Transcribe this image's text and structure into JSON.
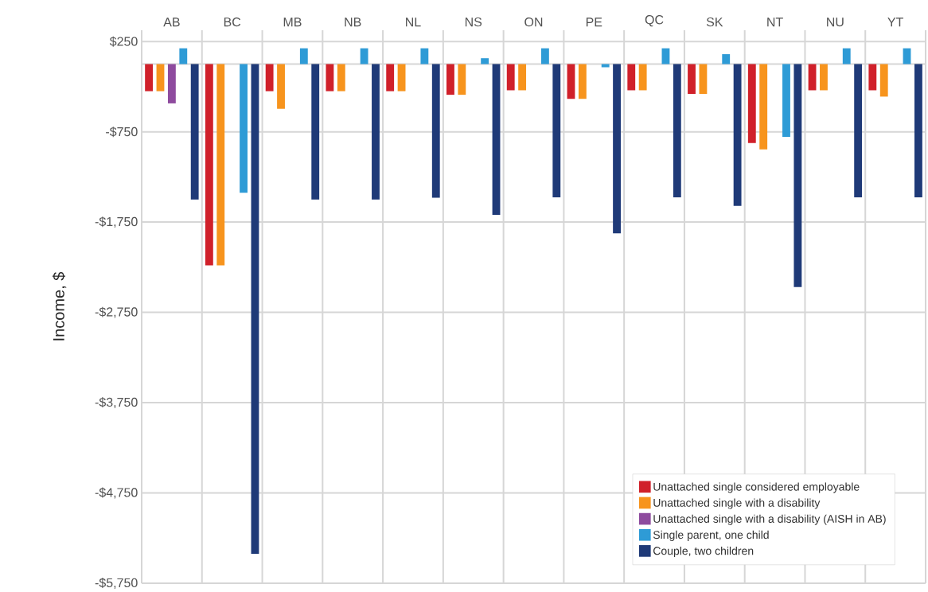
{
  "chart_data": {
    "type": "bar",
    "ylabel": "Income, $",
    "categories": [
      "AB",
      "BC",
      "MB",
      "NB",
      "NL",
      "NS",
      "ON",
      "PE",
      "QC",
      "SK",
      "NT",
      "NU",
      "YT"
    ],
    "series": [
      {
        "name": "Unattached single considered employable",
        "color": "#d0202a",
        "values": [
          -300,
          -2230,
          -300,
          -300,
          -300,
          -340,
          -290,
          -385,
          -290,
          -330,
          -875,
          -290,
          -290
        ]
      },
      {
        "name": "Unattached single with a disability",
        "color": "#f7941d",
        "values": [
          -300,
          -2230,
          -495,
          -300,
          -300,
          -340,
          -290,
          -385,
          -290,
          -330,
          -945,
          -290,
          -360
        ]
      },
      {
        "name": "Unattached single with a disability (AISH in AB)",
        "color": "#8e4b9e",
        "values": [
          -435,
          null,
          null,
          null,
          null,
          null,
          null,
          null,
          null,
          null,
          null,
          null,
          null
        ]
      },
      {
        "name": "Single parent, one child",
        "color": "#2e9bd6",
        "values": [
          175,
          -1425,
          175,
          175,
          175,
          65,
          175,
          -35,
          175,
          110,
          -805,
          175,
          175
        ]
      },
      {
        "name": "Couple, two children",
        "color": "#1f3a78",
        "values": [
          -1500,
          -5425,
          -1500,
          -1500,
          -1480,
          -1670,
          -1475,
          -1875,
          -1475,
          -1570,
          -2470,
          -1475,
          -1475
        ]
      }
    ],
    "ylim": [
      -5750,
      375
    ],
    "yticks": [
      {
        "value": 250,
        "label": "$250"
      },
      {
        "value": -750,
        "label": "-$750"
      },
      {
        "value": -1750,
        "label": "-$1,750"
      },
      {
        "value": -2750,
        "label": "-$2,750"
      },
      {
        "value": -3750,
        "label": "-$3,750"
      },
      {
        "value": -4750,
        "label": "-$4,750"
      },
      {
        "value": -5750,
        "label": "-$5,750"
      }
    ],
    "grid": true,
    "legend": "bottom right"
  }
}
